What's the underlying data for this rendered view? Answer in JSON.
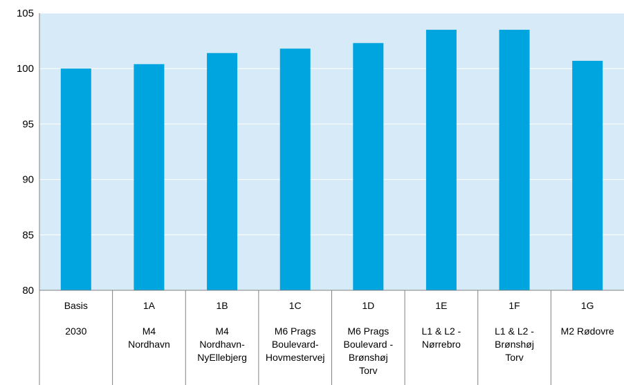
{
  "chart_data": {
    "type": "bar",
    "categories": [
      {
        "code": "Basis",
        "lines": [
          "2030"
        ]
      },
      {
        "code": "1A",
        "lines": [
          "M4",
          "Nordhavn"
        ]
      },
      {
        "code": "1B",
        "lines": [
          "M4",
          "Nordhavn-",
          "NyEllebjerg"
        ]
      },
      {
        "code": "1C",
        "lines": [
          "M6 Prags",
          "Boulevard-",
          "Hovmestervej"
        ]
      },
      {
        "code": "1D",
        "lines": [
          "M6 Prags",
          "Boulevard -",
          "Brønshøj",
          "Torv"
        ]
      },
      {
        "code": "1E",
        "lines": [
          "L1 & L2 -",
          "Nørrebro"
        ]
      },
      {
        "code": "1F",
        "lines": [
          "L1 & L2 -",
          "Brønshøj",
          "Torv"
        ]
      },
      {
        "code": "1G",
        "lines": [
          "M2 Rødovre"
        ]
      }
    ],
    "values": [
      100.0,
      100.4,
      101.4,
      101.8,
      102.3,
      103.5,
      103.5,
      100.7
    ],
    "ylim": [
      80,
      105
    ],
    "yticks": [
      "80",
      "85",
      "90",
      "95",
      "100",
      "105"
    ],
    "grid": true,
    "title": "",
    "xlabel": "",
    "ylabel": "",
    "colors": {
      "bar": "#00a5df",
      "plot_bg": "#d7eaf7",
      "grid": "#ffffff",
      "axis": "#808080"
    }
  }
}
